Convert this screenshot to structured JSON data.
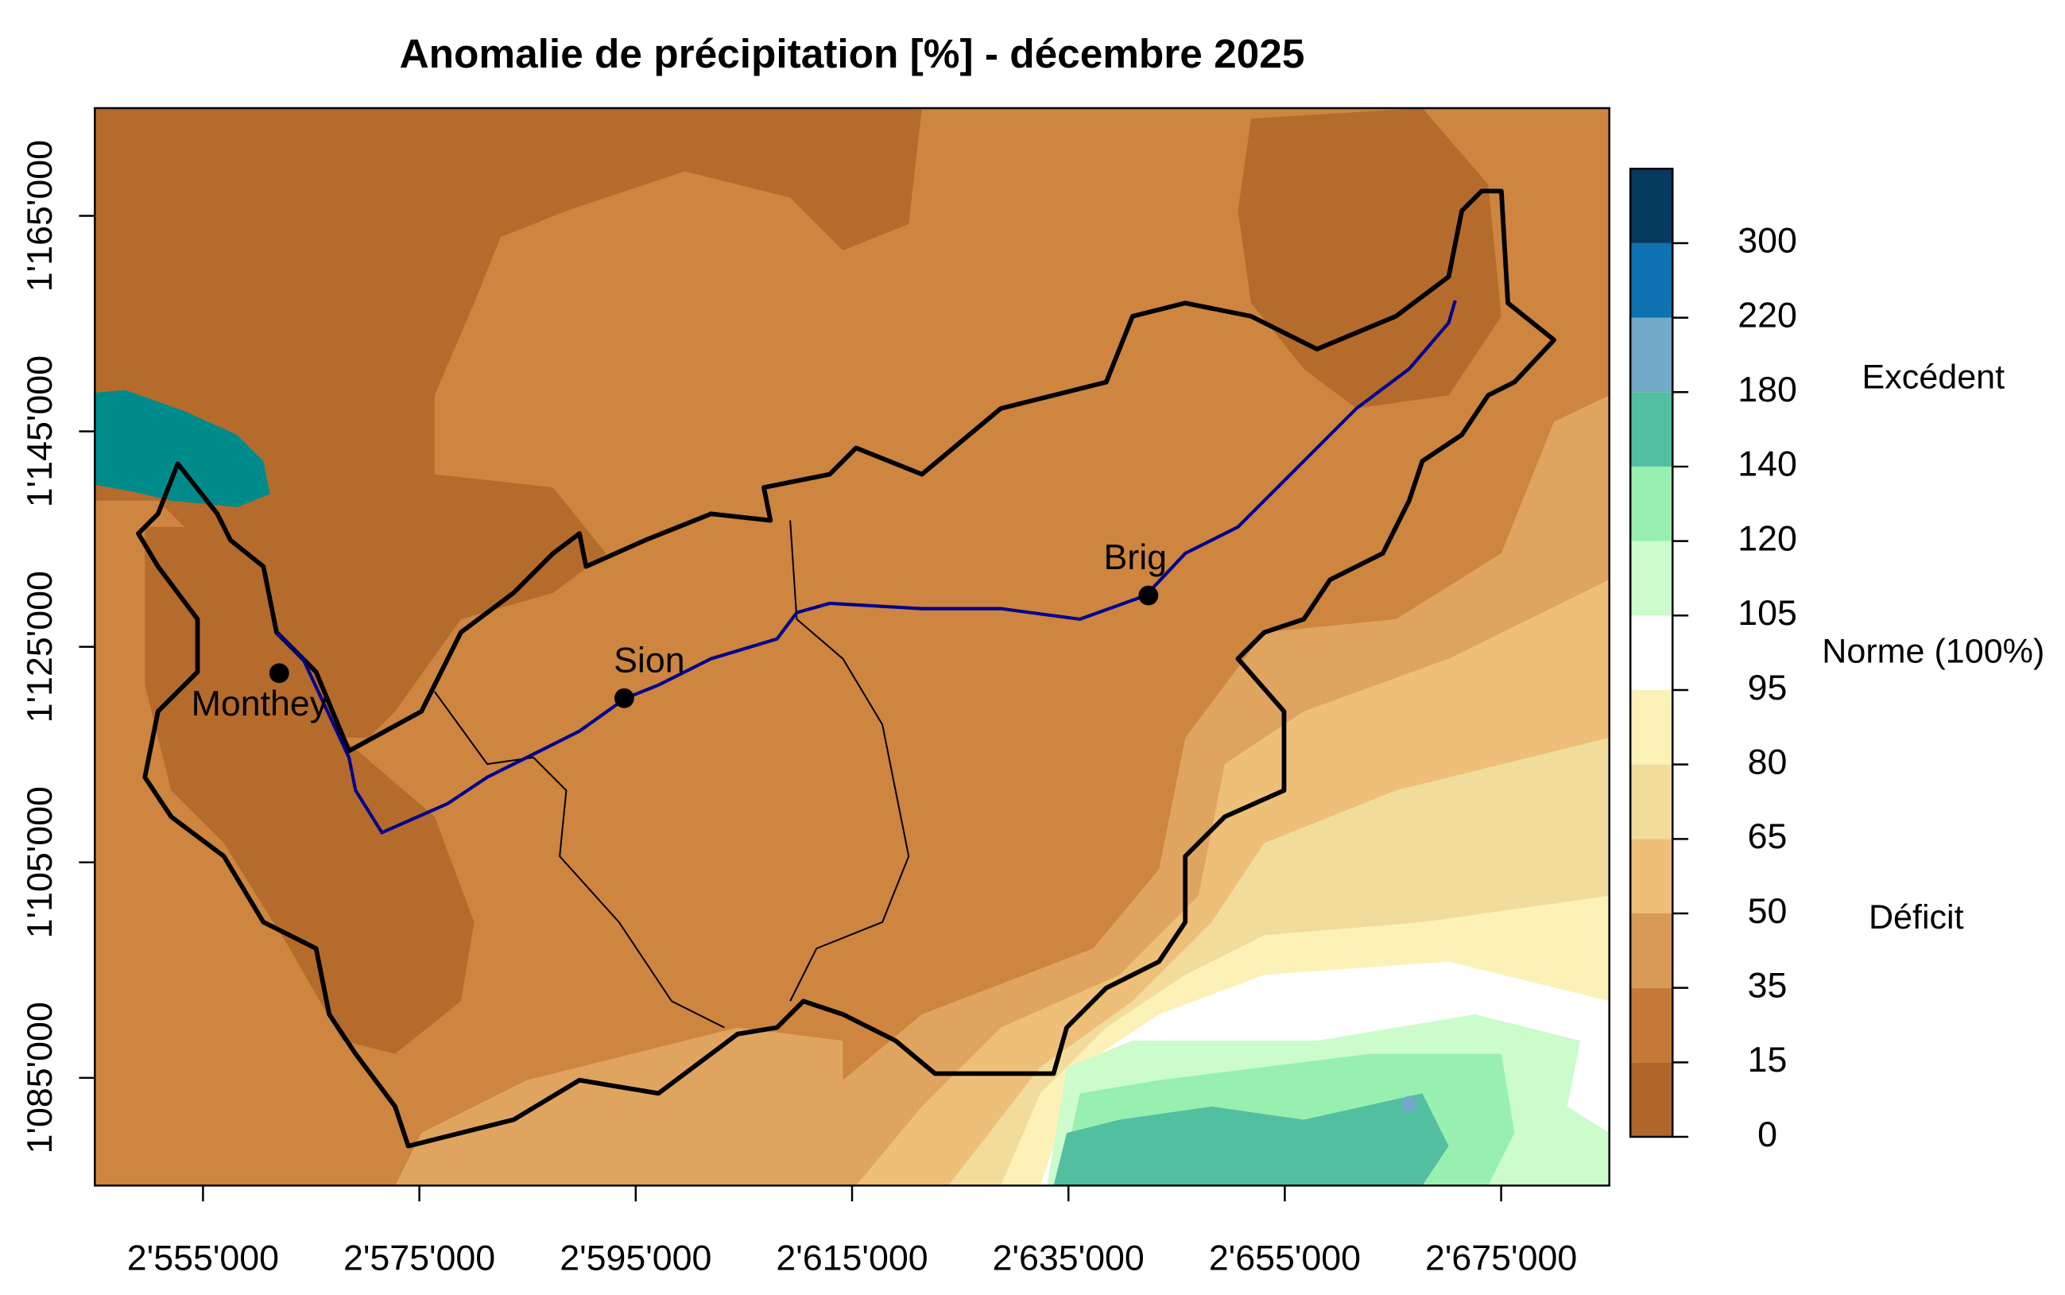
{
  "title": "Anomalie de précipitation [%] - décembre 2025",
  "axes": {
    "xlim": [
      2545000,
      2685000
    ],
    "ylim": [
      1075000,
      1175000
    ],
    "xticks": [
      {
        "value": 2555000,
        "label": "2'555'000"
      },
      {
        "value": 2575000,
        "label": "2'575'000"
      },
      {
        "value": 2595000,
        "label": "2'595'000"
      },
      {
        "value": 2615000,
        "label": "2'615'000"
      },
      {
        "value": 2635000,
        "label": "2'635'000"
      },
      {
        "value": 2655000,
        "label": "2'655'000"
      },
      {
        "value": 2675000,
        "label": "2'675'000"
      }
    ],
    "yticks": [
      {
        "value": 1085000,
        "label": "1'085'000"
      },
      {
        "value": 1105000,
        "label": "1'105'000"
      },
      {
        "value": 1125000,
        "label": "1'125'000"
      },
      {
        "value": 1145000,
        "label": "1'145'000"
      },
      {
        "value": 1165000,
        "label": "1'165'000"
      }
    ]
  },
  "places": [
    "Monthey",
    "Sion",
    "Brig"
  ],
  "legend": {
    "levels": [
      0,
      15,
      35,
      50,
      65,
      80,
      95,
      105,
      120,
      140,
      180,
      220,
      300
    ],
    "colors": [
      "#b0652a",
      "#c47a36",
      "#d89a58",
      "#eebf78",
      "#f2dc9c",
      "#fcf2b8",
      "#ffffff",
      "#ccfccc",
      "#98f0b0",
      "#52bfa0",
      "#72a8c8",
      "#0e71b1",
      "#063a5e"
    ],
    "annotations": {
      "excess": "Excédent",
      "normal": "Norme (100%)",
      "deficit": "Déficit"
    }
  }
}
